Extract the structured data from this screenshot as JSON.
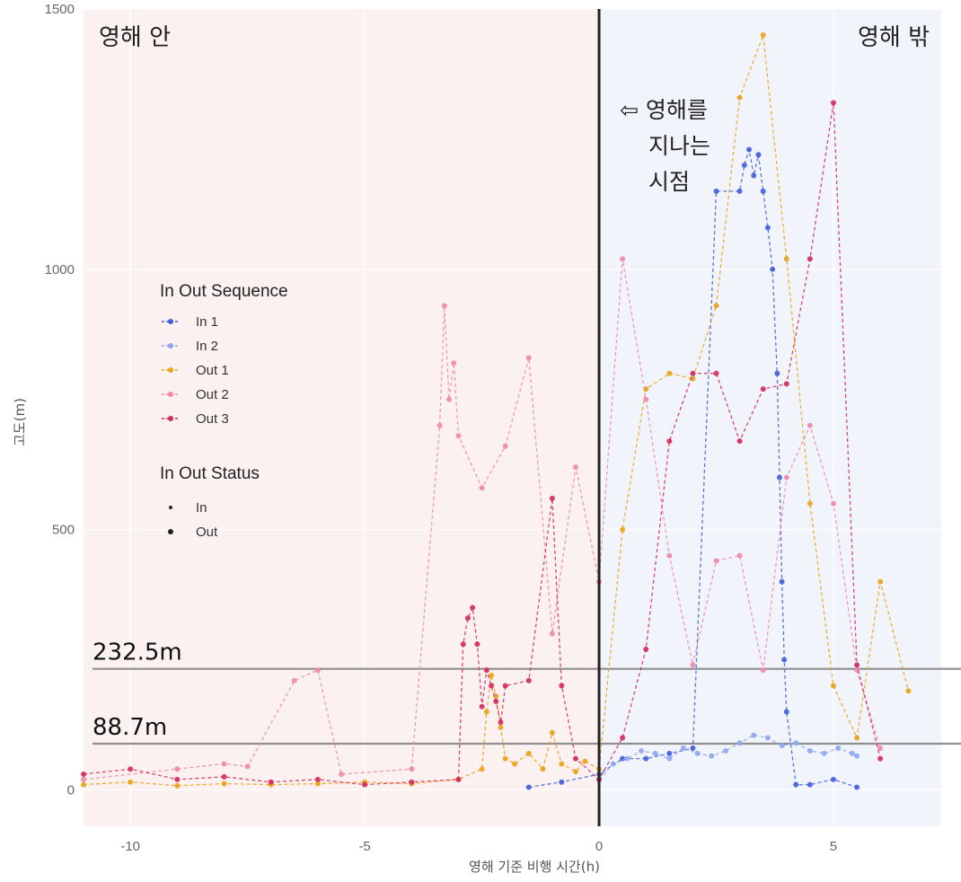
{
  "chart_data": {
    "type": "scatter",
    "xlabel": "영해 기준 비행 시간(h)",
    "ylabel": "고도(m)",
    "xlim": [
      -11,
      7.3
    ],
    "ylim": [
      -70,
      1500
    ],
    "x_ticks": [
      "-10",
      "-5",
      "0",
      "5"
    ],
    "y_ticks": [
      "0",
      "500",
      "1000",
      "1500"
    ],
    "x_tick_values": [
      -10,
      -5,
      0,
      5
    ],
    "y_tick_values": [
      0,
      500,
      1000,
      1500
    ],
    "region_labels": {
      "inside": "영해 안",
      "outside": "영해 밖"
    },
    "vertical_marker": {
      "x": 0,
      "label_lines": [
        "⇦ 영해를",
        "지나는",
        "시점"
      ]
    },
    "thresholds": [
      {
        "y": 232.5,
        "label": "232.5m"
      },
      {
        "y": 88.7,
        "label": "88.7m"
      }
    ],
    "legend": {
      "sequence_title": "In Out Sequence",
      "status_title": "In Out Status",
      "placement": "left-center"
    },
    "status_items": [
      {
        "name": "In"
      },
      {
        "name": "Out"
      }
    ],
    "series": [
      {
        "name": "In 1",
        "color": "#3f5fd8",
        "x": [
          -1.5,
          -0.8,
          0,
          0.5,
          1.0,
          1.5,
          2.0,
          2.5,
          3.0,
          3.1,
          3.2,
          3.3,
          3.4,
          3.5,
          3.6,
          3.7,
          3.8,
          3.85,
          3.9,
          3.95,
          4.0,
          4.2,
          4.5,
          5.0,
          5.5
        ],
        "y": [
          5,
          15,
          30,
          60,
          60,
          70,
          80,
          1150,
          1150,
          1200,
          1230,
          1180,
          1220,
          1150,
          1080,
          1000,
          800,
          600,
          400,
          250,
          150,
          10,
          10,
          20,
          5
        ]
      },
      {
        "name": "In 2",
        "color": "#8fa6ec",
        "x": [
          0.0,
          0.3,
          0.6,
          0.9,
          1.2,
          1.5,
          1.8,
          2.1,
          2.4,
          2.7,
          3.0,
          3.3,
          3.6,
          3.9,
          4.2,
          4.5,
          4.8,
          5.1,
          5.4,
          5.5
        ],
        "y": [
          20,
          50,
          60,
          75,
          70,
          60,
          80,
          70,
          65,
          75,
          90,
          105,
          100,
          85,
          90,
          75,
          70,
          80,
          70,
          65
        ]
      },
      {
        "name": "Out 1",
        "color": "#e8a317",
        "x": [
          -11.0,
          -10.0,
          -9.0,
          -8.0,
          -7.0,
          -6.0,
          -5.0,
          -4.0,
          -3.0,
          -2.5,
          -2.4,
          -2.3,
          -2.2,
          -2.1,
          -2.0,
          -1.8,
          -1.5,
          -1.2,
          -1.0,
          -0.8,
          -0.5,
          -0.3,
          0.0,
          0.5,
          1.0,
          1.5,
          2.0,
          2.5,
          3.0,
          3.5,
          4.0,
          4.5,
          5.0,
          5.5,
          6.0,
          6.6
        ],
        "y": [
          10,
          15,
          8,
          12,
          10,
          12,
          15,
          12,
          20,
          40,
          150,
          220,
          180,
          120,
          60,
          50,
          70,
          40,
          110,
          50,
          35,
          55,
          40,
          500,
          770,
          800,
          790,
          930,
          1330,
          1450,
          1020,
          550,
          200,
          100,
          400,
          190
        ]
      },
      {
        "name": "Out 2",
        "color": "#f08aa8",
        "x": [
          -11.0,
          -9.0,
          -8.0,
          -7.5,
          -6.5,
          -6.0,
          -5.5,
          -4.0,
          -3.4,
          -3.3,
          -3.2,
          -3.1,
          -3.0,
          -2.5,
          -2.0,
          -1.5,
          -1.0,
          -0.5,
          0.0,
          0.5,
          1.0,
          1.5,
          2.0,
          2.5,
          3.0,
          3.5,
          4.0,
          4.5,
          5.0,
          5.5,
          6.0
        ],
        "y": [
          20,
          40,
          50,
          45,
          210,
          230,
          30,
          40,
          700,
          930,
          750,
          820,
          680,
          580,
          660,
          830,
          300,
          620,
          400,
          1020,
          750,
          450,
          240,
          440,
          450,
          230,
          600,
          700,
          550,
          230,
          80
        ]
      },
      {
        "name": "Out 3",
        "color": "#d42a5a",
        "x": [
          -11.0,
          -10.0,
          -9.0,
          -8.0,
          -7.0,
          -6.0,
          -5.0,
          -4.0,
          -3.0,
          -2.9,
          -2.8,
          -2.7,
          -2.6,
          -2.5,
          -2.4,
          -2.3,
          -2.2,
          -2.1,
          -2.0,
          -1.5,
          -1.0,
          -0.8,
          -0.5,
          0.0,
          0.5,
          1.0,
          1.5,
          2.0,
          2.5,
          3.0,
          3.5,
          4.0,
          4.5,
          5.0,
          5.5,
          6.0
        ],
        "y": [
          30,
          40,
          20,
          25,
          15,
          20,
          10,
          15,
          20,
          280,
          330,
          350,
          280,
          160,
          230,
          200,
          170,
          130,
          200,
          210,
          560,
          200,
          60,
          20,
          100,
          270,
          670,
          800,
          800,
          670,
          770,
          780,
          1020,
          1320,
          240,
          60
        ]
      }
    ]
  }
}
